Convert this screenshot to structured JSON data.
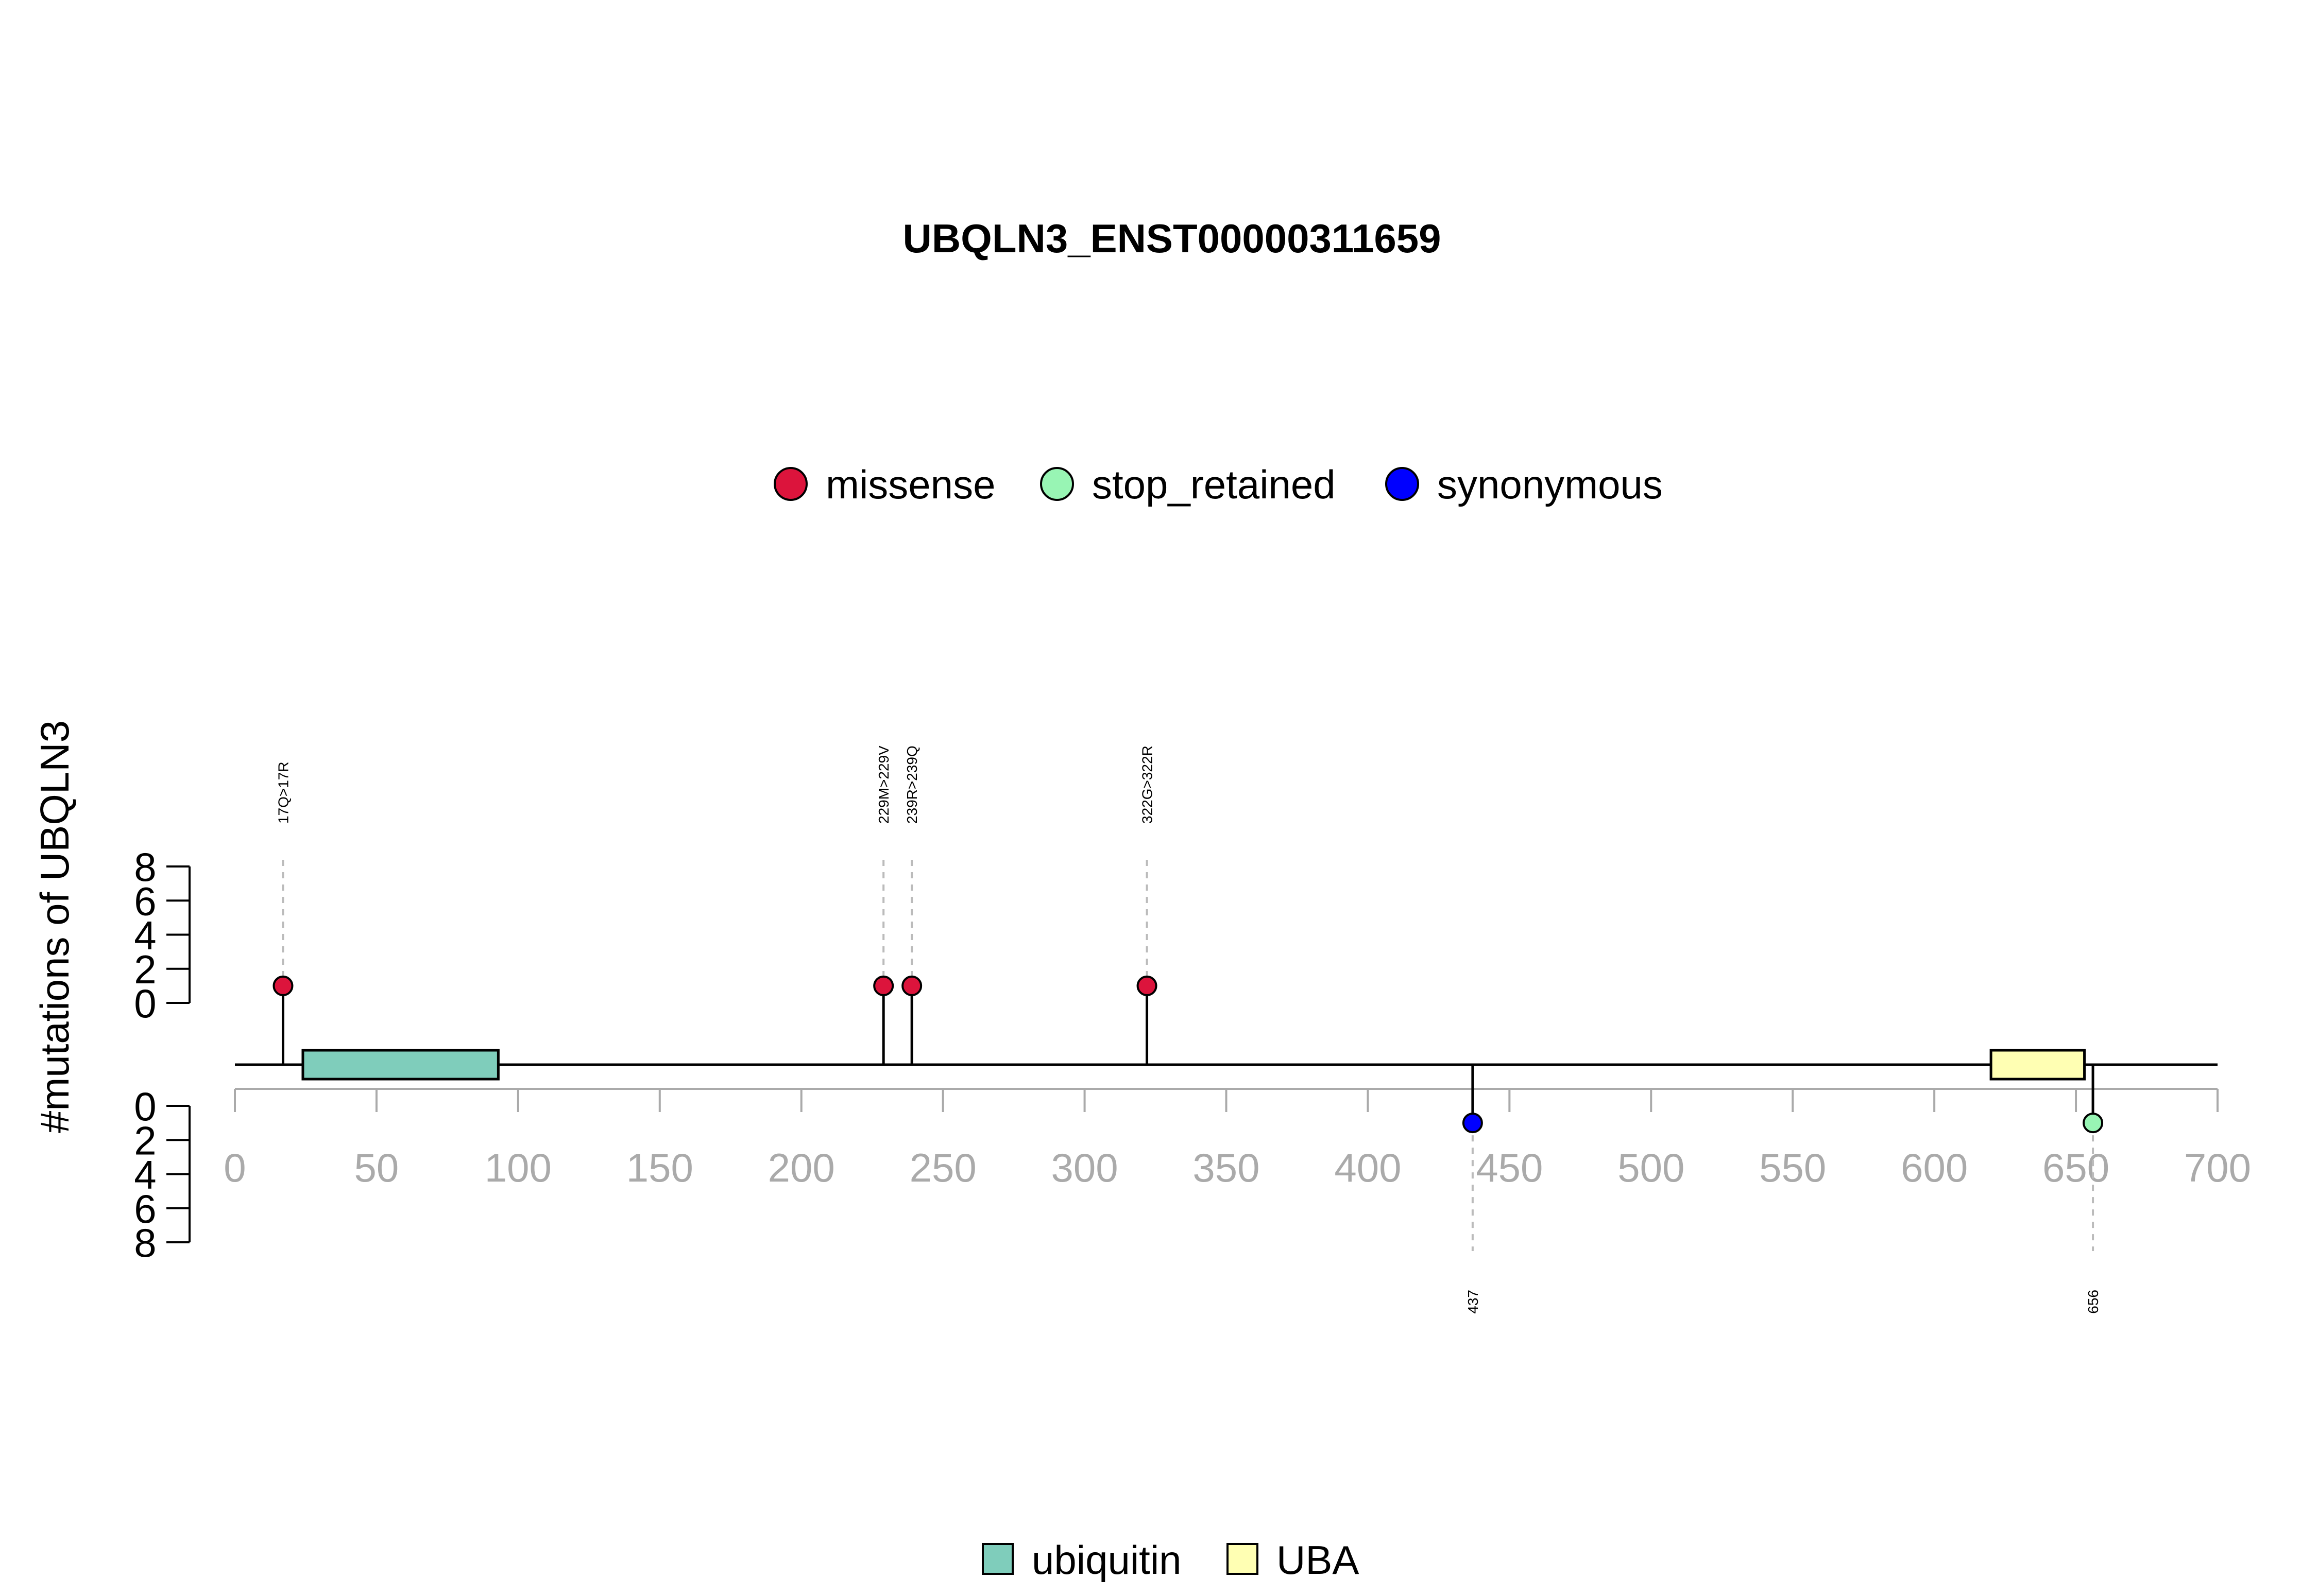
{
  "chart_data": {
    "type": "lollipop",
    "title": "UBQLN3_ENST00000311659",
    "ylabel": "#mutations of UBQLN3",
    "xlim": [
      0,
      700
    ],
    "x_ticks": [
      "0",
      "50",
      "100",
      "150",
      "200",
      "250",
      "300",
      "350",
      "400",
      "450",
      "500",
      "550",
      "600",
      "650",
      "700"
    ],
    "upper_ticks": [
      "8",
      "6",
      "4",
      "2",
      "0"
    ],
    "lower_ticks": [
      "0",
      "2",
      "4",
      "6",
      "8"
    ],
    "count_max": 8,
    "mutation_legend": [
      {
        "name": "missense",
        "color": "#dc143c"
      },
      {
        "name": "stop_retained",
        "color": "#98f5b4"
      },
      {
        "name": "synonymous",
        "color": "#0000ff"
      }
    ],
    "domain_legend": [
      {
        "name": "ubiquitin",
        "color": "#7fcdbb"
      },
      {
        "name": "UBA",
        "color": "#ffffb3"
      }
    ],
    "domains": [
      {
        "name": "ubiquitin",
        "start": 24,
        "end": 93,
        "color": "#7fcdbb"
      },
      {
        "name": "UBA",
        "start": 620,
        "end": 653,
        "color": "#ffffb3"
      }
    ],
    "mutations": [
      {
        "pos": 17,
        "count": 1,
        "label": "17Q>17R",
        "type": "missense",
        "side": "top"
      },
      {
        "pos": 229,
        "count": 1,
        "label": "229M>229V",
        "type": "missense",
        "side": "top"
      },
      {
        "pos": 239,
        "count": 1,
        "label": "239R>239Q",
        "type": "missense",
        "side": "top"
      },
      {
        "pos": 322,
        "count": 1,
        "label": "322G>322R",
        "type": "missense",
        "side": "top"
      },
      {
        "pos": 437,
        "count": 1,
        "label": "437",
        "type": "synonymous",
        "side": "bottom"
      },
      {
        "pos": 656,
        "count": 1,
        "label": "656",
        "type": "stop_retained",
        "side": "bottom"
      }
    ]
  }
}
